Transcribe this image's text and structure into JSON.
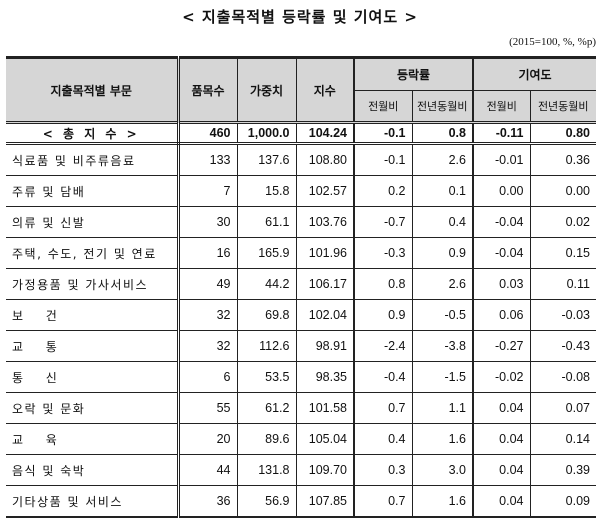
{
  "title": "< 지출목적별 등락률 및 기여도 >",
  "unit": "(2015=100, %, %p)",
  "headers": {
    "category": "지출목적별 부문",
    "items": "품목수",
    "weight": "가중치",
    "index": "지수",
    "change_rate": "등락률",
    "contribution": "기여도",
    "mom": "전월비",
    "yoy": "전년동월비",
    "mom2": "전월비",
    "yoy2": "전년동월비"
  },
  "total": [
    "< 총 지 수 >",
    "460",
    "1,000.0",
    "104.24",
    "-0.1",
    "0.8",
    "-0.11",
    "0.80"
  ],
  "rows": [
    [
      "식료품 및 비주류음료",
      "133",
      "137.6",
      "108.80",
      "-0.1",
      "2.6",
      "-0.01",
      "0.36"
    ],
    [
      "주류 및 담배",
      "7",
      "15.8",
      "102.57",
      "0.2",
      "0.1",
      "0.00",
      "0.00"
    ],
    [
      "의류 및 신발",
      "30",
      "61.1",
      "103.76",
      "-0.7",
      "0.4",
      "-0.04",
      "0.02"
    ],
    [
      "주택, 수도, 전기 및 연료",
      "16",
      "165.9",
      "101.96",
      "-0.3",
      "0.9",
      "-0.04",
      "0.15"
    ],
    [
      "가정용품 및 가사서비스",
      "49",
      "44.2",
      "106.17",
      "0.8",
      "2.6",
      "0.03",
      "0.11"
    ],
    [
      "보    건",
      "32",
      "69.8",
      "102.04",
      "0.9",
      "-0.5",
      "0.06",
      "-0.03"
    ],
    [
      "교    통",
      "32",
      "112.6",
      "98.91",
      "-2.4",
      "-3.8",
      "-0.27",
      "-0.43"
    ],
    [
      "통    신",
      "6",
      "53.5",
      "98.35",
      "-0.4",
      "-1.5",
      "-0.02",
      "-0.08"
    ],
    [
      "오락 및 문화",
      "55",
      "61.2",
      "101.58",
      "0.7",
      "1.1",
      "0.04",
      "0.07"
    ],
    [
      "교    육",
      "20",
      "89.6",
      "105.04",
      "0.4",
      "1.6",
      "0.04",
      "0.14"
    ],
    [
      "음식 및 숙박",
      "44",
      "131.8",
      "109.70",
      "0.3",
      "3.0",
      "0.04",
      "0.39"
    ],
    [
      "기타상품 및 서비스",
      "36",
      "56.9",
      "107.85",
      "0.7",
      "1.6",
      "0.04",
      "0.09"
    ]
  ]
}
